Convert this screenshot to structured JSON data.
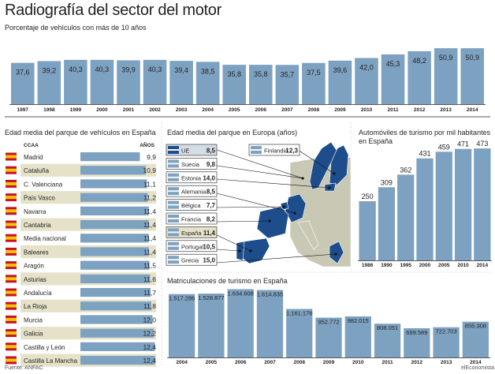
{
  "title": "Radiografía del sector del motor",
  "subtitle": "Porcentaje de vehículos con más de 10 años",
  "sections": {
    "spain_age": "Edad media del parque de vehículos en España",
    "europe_age": "Edad media del parque en Europa (años)",
    "cars_per_1000": "Automóviles de turismo por mil habitantes en España",
    "registrations": "Matriculaciones de turismo en España"
  },
  "footer": {
    "source": "Fuente: ANFAC",
    "credit": "elEconomista"
  },
  "colors": {
    "bar": "#7da2c1",
    "highlight_band": "#e5e2c9",
    "map_europe_highlight": "#1e4d8c",
    "map_other": "#c9c8b4",
    "map_sea": "#ffffff"
  },
  "chart_data": [
    {
      "id": "old_vehicles",
      "type": "bar",
      "title": "Porcentaje de vehículos con más de 10 años",
      "categories": [
        "1997",
        "1998",
        "1999",
        "2000",
        "2001",
        "2002",
        "2003",
        "2004",
        "2005",
        "2006",
        "2007",
        "2008",
        "2009",
        "2010",
        "2011",
        "2012",
        "2013",
        "2014"
      ],
      "value_labels": [
        "37,6",
        "39,2",
        "40,3",
        "40,3",
        "39,9",
        "40,3",
        "39,4",
        "38,5",
        "35,8",
        "35,8",
        "35,7",
        "37,5",
        "39,6",
        "42,0",
        "45,3",
        "48,2",
        "50,9",
        "50,9"
      ],
      "values": [
        37.6,
        39.2,
        40.3,
        40.3,
        39.9,
        40.3,
        39.4,
        38.5,
        35.8,
        35.8,
        35.7,
        37.5,
        39.6,
        42.0,
        45.3,
        48.2,
        50.9,
        50.9
      ],
      "ylim": [
        0,
        56
      ]
    },
    {
      "id": "ccaa_age",
      "type": "bar",
      "orientation": "horizontal",
      "title": "Edad media del parque de vehículos en España",
      "column_labels": {
        "region": "CCAA",
        "value": "AÑOS"
      },
      "rows": [
        {
          "name": "Madrid",
          "label": "9,9",
          "value": 9.9,
          "flag": "madrid-flag-icon",
          "highlight": false
        },
        {
          "name": "Cataluña",
          "label": "10,9",
          "value": 10.9,
          "flag": "cataluna-flag-icon",
          "highlight": true
        },
        {
          "name": "C. Valenciana",
          "label": "11,1",
          "value": 11.1,
          "flag": "valencia-flag-icon",
          "highlight": false
        },
        {
          "name": "País Vasco",
          "label": "11,2",
          "value": 11.2,
          "flag": "pais-vasco-flag-icon",
          "highlight": true
        },
        {
          "name": "Navarra",
          "label": "11,4",
          "value": 11.4,
          "flag": "navarra-flag-icon",
          "highlight": false
        },
        {
          "name": "Cantabria",
          "label": "11,4",
          "value": 11.4,
          "flag": "cantabria-flag-icon",
          "highlight": true
        },
        {
          "name": "Media nacional",
          "label": "11,4",
          "value": 11.4,
          "flag": "spain-flag-icon",
          "highlight": false
        },
        {
          "name": "Baleares",
          "label": "11,4",
          "value": 11.4,
          "flag": "baleares-flag-icon",
          "highlight": true
        },
        {
          "name": "Aragón",
          "label": "11,5",
          "value": 11.5,
          "flag": "aragon-flag-icon",
          "highlight": false
        },
        {
          "name": "Asturias",
          "label": "11,6",
          "value": 11.6,
          "flag": "asturias-flag-icon",
          "highlight": true
        },
        {
          "name": "Andalucía",
          "label": "11,7",
          "value": 11.7,
          "flag": "andalucia-flag-icon",
          "highlight": false
        },
        {
          "name": "La Rioja",
          "label": "11,8",
          "value": 11.8,
          "flag": "la-rioja-flag-icon",
          "highlight": true
        },
        {
          "name": "Murcia",
          "label": "12,0",
          "value": 12.0,
          "flag": "murcia-flag-icon",
          "highlight": false
        },
        {
          "name": "Galicia",
          "label": "12,2",
          "value": 12.2,
          "flag": "galicia-flag-icon",
          "highlight": true
        },
        {
          "name": "Castilla y León",
          "label": "12,4",
          "value": 12.4,
          "flag": "castilla-leon-flag-icon",
          "highlight": false
        },
        {
          "name": "Castilla La Mancha",
          "label": "12,4",
          "value": 12.4,
          "flag": "castilla-la-mancha-flag-icon",
          "highlight": true
        }
      ],
      "xlim": [
        0,
        12.6
      ]
    },
    {
      "id": "europe_age",
      "type": "table",
      "title": "Edad media del parque en Europa (años)",
      "rows": [
        {
          "name": "UE",
          "label": "8,5",
          "flag": "eu-flag-icon",
          "box": "dark"
        },
        {
          "name": "Finlandia",
          "label": "12,3",
          "flag": "finland-flag-icon",
          "box": "light"
        },
        {
          "name": "Suecia",
          "label": "9,8",
          "flag": "sweden-flag-icon",
          "box": "light"
        },
        {
          "name": "Estonia",
          "label": "14,0",
          "flag": "estonia-flag-icon",
          "box": "light"
        },
        {
          "name": "Alemania",
          "label": "8,5",
          "flag": "germany-flag-icon",
          "box": "light"
        },
        {
          "name": "Bélgica",
          "label": "7,7",
          "flag": "belgium-flag-icon",
          "box": "light"
        },
        {
          "name": "Francia",
          "label": "8,2",
          "flag": "france-flag-icon",
          "box": "light"
        },
        {
          "name": "España",
          "label": "11,4",
          "flag": "spain-flag-icon",
          "box": "highlight"
        },
        {
          "name": "Portugal",
          "label": "10,5",
          "flag": "portugal-flag-icon",
          "box": "light"
        },
        {
          "name": "Grecia",
          "label": "15,0",
          "flag": "greece-flag-icon",
          "box": "light"
        }
      ]
    },
    {
      "id": "cars_per_1000",
      "type": "bar",
      "title": "Automóviles de turismo por mil habitantes en España",
      "categories": [
        "1986",
        "1990",
        "1995",
        "2000",
        "2005",
        "2010",
        "2014"
      ],
      "value_labels": [
        "250",
        "309",
        "362",
        "431",
        "459",
        "471",
        "473"
      ],
      "values": [
        250,
        309,
        362,
        431,
        459,
        471,
        473
      ],
      "ylim": [
        0,
        500
      ]
    },
    {
      "id": "registrations",
      "type": "bar",
      "title": "Matriculaciones de turismo en España",
      "categories": [
        "2004",
        "2005",
        "2006",
        "2007",
        "2008",
        "2009",
        "2010",
        "2011",
        "2012",
        "2013",
        "2014"
      ],
      "value_labels": [
        "1.517.286",
        "1.528.877",
        "1.634.608",
        "1.614.835",
        "1.161.176",
        "952.772",
        "982.015",
        "808.051",
        "699.589",
        "722.703",
        "855.308"
      ],
      "values": [
        1517286,
        1528877,
        1634608,
        1614835,
        1161176,
        952772,
        982015,
        808051,
        699589,
        722703,
        855308
      ],
      "ylim": [
        0,
        1700000
      ]
    }
  ]
}
